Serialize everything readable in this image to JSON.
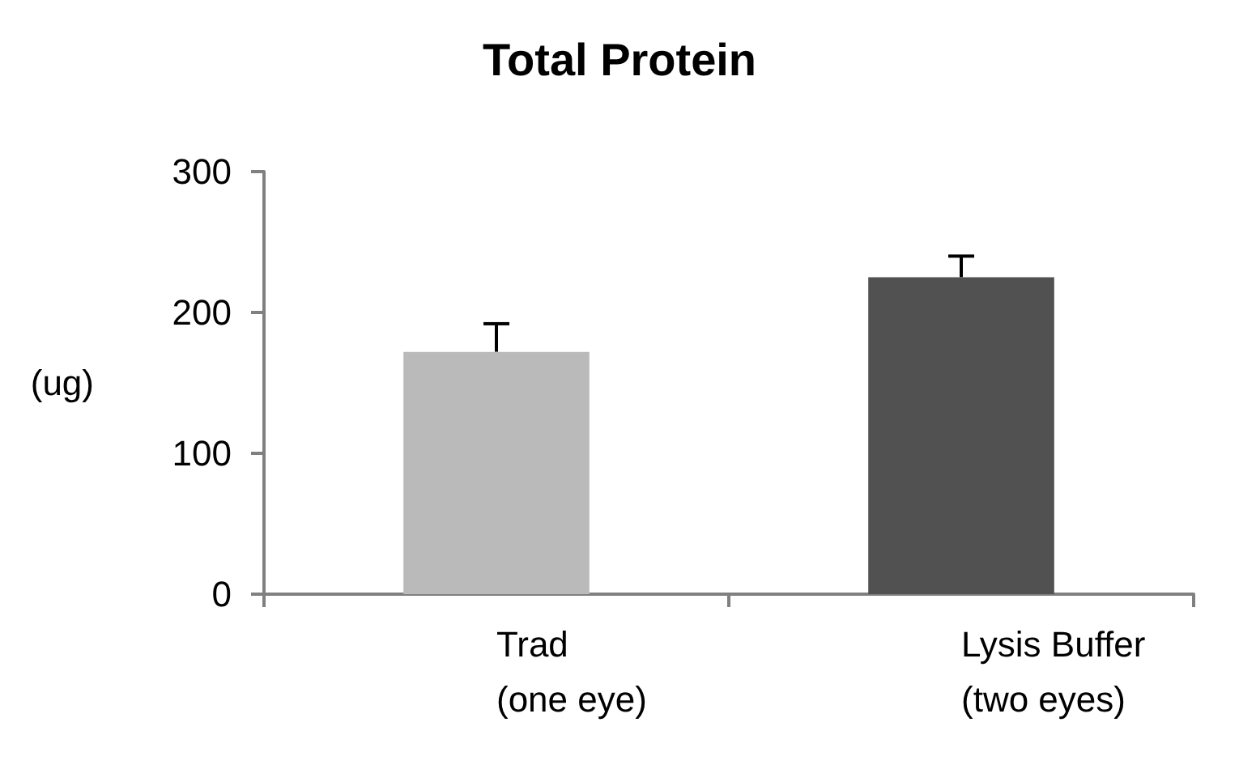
{
  "chart_data": {
    "type": "bar",
    "title": "Total Protein",
    "ylabel": "(ug)",
    "categories": [
      "Trad\n(one eye)",
      "Lysis Buffer\n(two eyes)"
    ],
    "values": [
      172,
      225
    ],
    "colors": [
      "#bababa",
      "#515151"
    ],
    "errors": [
      [
        172,
        192
      ],
      [
        225,
        240
      ]
    ],
    "ylim": [
      0,
      300
    ],
    "yticks": [
      0,
      100,
      200,
      300
    ],
    "grid": false
  }
}
